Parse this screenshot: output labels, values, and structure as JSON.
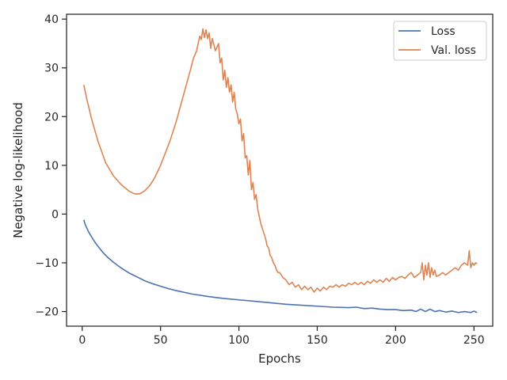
{
  "chart_data": {
    "type": "line",
    "title": "",
    "xlabel": "Epochs",
    "ylabel": "Negative log-likelihood",
    "xlim": [
      -10,
      262
    ],
    "ylim": [
      -23,
      41
    ],
    "xticks": [
      0,
      50,
      100,
      150,
      200,
      250
    ],
    "yticks": [
      -20,
      -10,
      0,
      10,
      20,
      30,
      40
    ],
    "grid": false,
    "legend_position": "top-right",
    "series": [
      {
        "name": "Loss",
        "color": "#4c72b0",
        "x": [
          1,
          2,
          4,
          6,
          8,
          10,
          13,
          16,
          20,
          25,
          30,
          35,
          40,
          45,
          50,
          55,
          60,
          70,
          80,
          90,
          100,
          110,
          120,
          130,
          140,
          150,
          160,
          170,
          175,
          180,
          185,
          190,
          195,
          200,
          205,
          210,
          213,
          216,
          219,
          222,
          225,
          228,
          232,
          236,
          240,
          244,
          248,
          250,
          252
        ],
        "y": [
          -1.2,
          -2.2,
          -3.6,
          -4.7,
          -5.7,
          -6.6,
          -7.8,
          -8.8,
          -9.9,
          -11.1,
          -12.1,
          -12.9,
          -13.7,
          -14.3,
          -14.8,
          -15.3,
          -15.7,
          -16.4,
          -16.9,
          -17.3,
          -17.6,
          -17.9,
          -18.2,
          -18.5,
          -18.7,
          -18.9,
          -19.1,
          -19.2,
          -19.1,
          -19.4,
          -19.3,
          -19.5,
          -19.6,
          -19.6,
          -19.8,
          -19.7,
          -20.0,
          -19.5,
          -20.0,
          -19.5,
          -20.0,
          -19.8,
          -20.1,
          -19.9,
          -20.2,
          -20.0,
          -20.2,
          -19.9,
          -20.2
        ]
      },
      {
        "name": "Val. loss",
        "color": "#dd8452",
        "x": [
          1,
          3,
          6,
          10,
          15,
          20,
          25,
          30,
          33,
          35,
          37,
          40,
          43,
          46,
          50,
          53,
          56,
          60,
          63,
          66,
          69,
          71,
          73,
          74,
          75,
          76,
          77,
          78,
          79,
          80,
          81,
          82,
          83,
          85,
          87,
          88,
          89,
          90,
          91,
          92,
          93,
          94,
          95,
          96,
          97,
          98,
          99,
          100,
          101,
          102,
          103,
          104,
          105,
          106,
          107,
          108,
          109,
          110,
          111,
          112,
          113,
          114,
          115,
          116,
          117,
          118,
          119,
          120,
          121,
          122,
          123,
          124,
          125,
          126,
          127,
          128,
          130,
          132,
          134,
          136,
          138,
          140,
          142,
          144,
          146,
          148,
          150,
          152,
          154,
          156,
          158,
          160,
          162,
          164,
          166,
          168,
          170,
          172,
          174,
          176,
          178,
          180,
          182,
          184,
          186,
          188,
          190,
          192,
          194,
          196,
          198,
          200,
          202,
          204,
          206,
          208,
          210,
          212,
          214,
          216,
          217,
          218,
          219,
          220,
          221,
          222,
          223,
          224,
          225,
          226,
          228,
          230,
          232,
          234,
          236,
          238,
          240,
          242,
          244,
          246,
          247,
          248,
          249,
          250,
          251,
          252
        ],
        "y": [
          26.5,
          23.5,
          19.5,
          15.0,
          10.5,
          7.8,
          6.0,
          4.7,
          4.2,
          4.1,
          4.2,
          4.8,
          5.8,
          7.3,
          10.0,
          12.5,
          15.0,
          19.0,
          22.5,
          26.0,
          29.5,
          32.0,
          33.5,
          35.0,
          36.5,
          35.8,
          38.0,
          36.2,
          37.8,
          36.0,
          37.2,
          34.0,
          36.0,
          33.5,
          35.0,
          31.0,
          32.0,
          27.5,
          29.5,
          26.0,
          28.0,
          25.0,
          26.5,
          23.0,
          25.0,
          21.5,
          20.5,
          18.5,
          19.5,
          15.0,
          16.5,
          11.5,
          12.0,
          8.0,
          11.0,
          5.0,
          6.5,
          3.0,
          4.0,
          1.0,
          -0.5,
          -2.0,
          -3.0,
          -4.0,
          -5.0,
          -6.5,
          -7.0,
          -8.5,
          -9.0,
          -10.0,
          -10.5,
          -11.5,
          -12.0,
          -12.0,
          -12.5,
          -13.0,
          -13.5,
          -14.5,
          -14.0,
          -15.0,
          -14.5,
          -15.5,
          -14.8,
          -15.5,
          -15.0,
          -16.0,
          -15.2,
          -15.8,
          -15.0,
          -15.5,
          -14.8,
          -15.0,
          -14.5,
          -15.0,
          -14.5,
          -14.8,
          -14.2,
          -14.5,
          -14.0,
          -14.5,
          -14.0,
          -14.5,
          -13.8,
          -14.2,
          -13.5,
          -14.0,
          -13.5,
          -14.0,
          -13.2,
          -13.8,
          -13.0,
          -13.5,
          -13.0,
          -12.8,
          -13.2,
          -12.5,
          -12.0,
          -13.0,
          -12.5,
          -12.0,
          -10.0,
          -13.5,
          -10.5,
          -12.5,
          -10.0,
          -13.0,
          -11.0,
          -12.5,
          -11.5,
          -12.8,
          -12.5,
          -12.0,
          -12.5,
          -12.0,
          -11.5,
          -11.0,
          -11.5,
          -10.5,
          -10.0,
          -10.5,
          -7.5,
          -11.0,
          -10.0,
          -10.5,
          -10.0,
          -10.2
        ]
      }
    ]
  }
}
